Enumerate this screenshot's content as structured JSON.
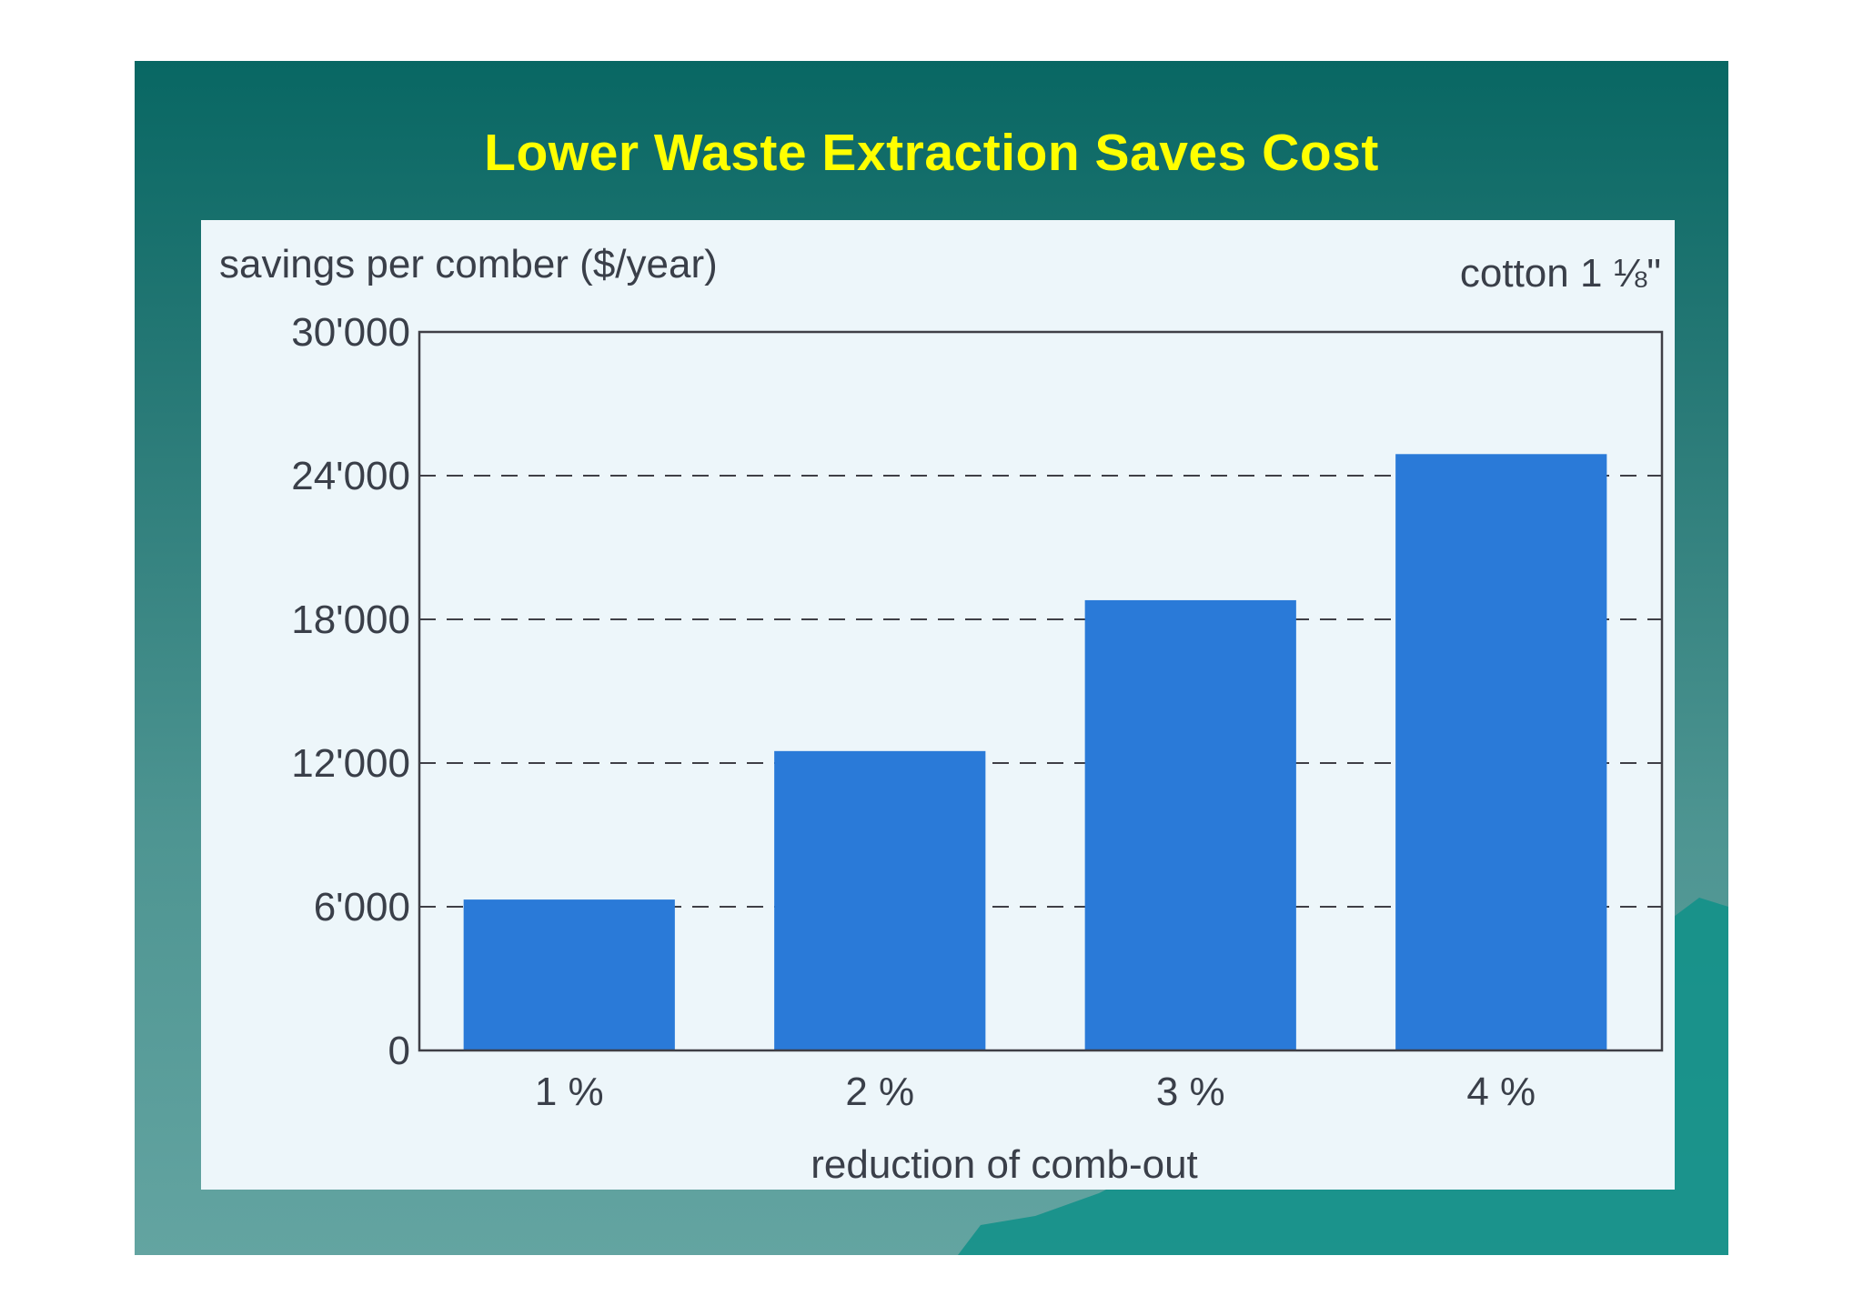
{
  "slide": {
    "title": "Lower Waste Extraction Saves Cost",
    "colors": {
      "background_top": "#086763",
      "background_bottom": "#63a4a1",
      "title": "#ffff00",
      "panel": "#edf6fa",
      "bar": "#2a7ad8",
      "text": "#3a3f49"
    }
  },
  "chart_data": {
    "type": "bar",
    "title": "",
    "ylabel": "savings per comber ($/year)",
    "xlabel": "reduction of comb-out",
    "annotation": "cotton 1 ⅛\"",
    "categories": [
      "1 %",
      "2 %",
      "3 %",
      "4 %"
    ],
    "values": [
      6300,
      12500,
      18800,
      24900
    ],
    "ylim": [
      0,
      30000
    ],
    "yticks": [
      0,
      6000,
      12000,
      18000,
      24000,
      30000
    ],
    "ytick_labels": [
      "0",
      "6'000",
      "12'000",
      "18'000",
      "24'000",
      "30'000"
    ],
    "grid": "dashed horizontal",
    "legend": "none"
  }
}
